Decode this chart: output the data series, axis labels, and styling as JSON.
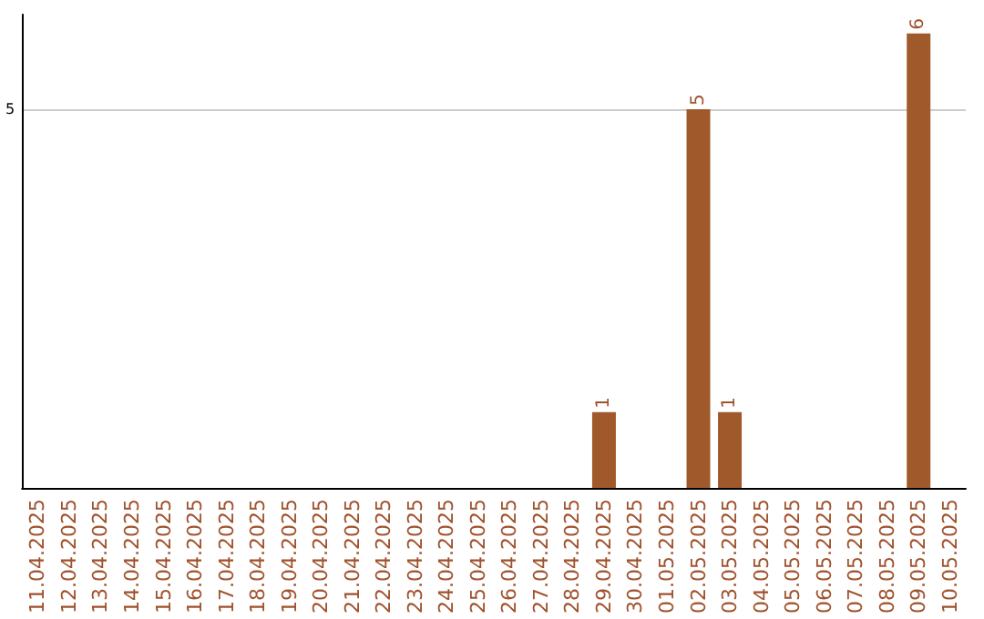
{
  "chart_data": {
    "type": "bar",
    "categories": [
      "11.04.2025",
      "12.04.2025",
      "13.04.2025",
      "14.04.2025",
      "15.04.2025",
      "16.04.2025",
      "17.04.2025",
      "18.04.2025",
      "19.04.2025",
      "20.04.2025",
      "21.04.2025",
      "22.04.2025",
      "23.04.2025",
      "24.04.2025",
      "25.04.2025",
      "26.04.2025",
      "27.04.2025",
      "28.04.2025",
      "29.04.2025",
      "30.04.2025",
      "01.05.2025",
      "02.05.2025",
      "03.05.2025",
      "04.05.2025",
      "05.05.2025",
      "06.05.2025",
      "07.05.2025",
      "08.05.2025",
      "09.05.2025",
      "10.05.2025"
    ],
    "values": [
      null,
      null,
      null,
      null,
      null,
      null,
      null,
      null,
      null,
      null,
      null,
      null,
      null,
      null,
      null,
      null,
      null,
      null,
      1,
      null,
      null,
      5,
      1,
      null,
      null,
      null,
      null,
      null,
      6,
      null
    ],
    "color": "#a0592b",
    "ylim": [
      0,
      6.25
    ],
    "yticks": [
      5
    ],
    "grid": "y",
    "data_labels": true
  }
}
